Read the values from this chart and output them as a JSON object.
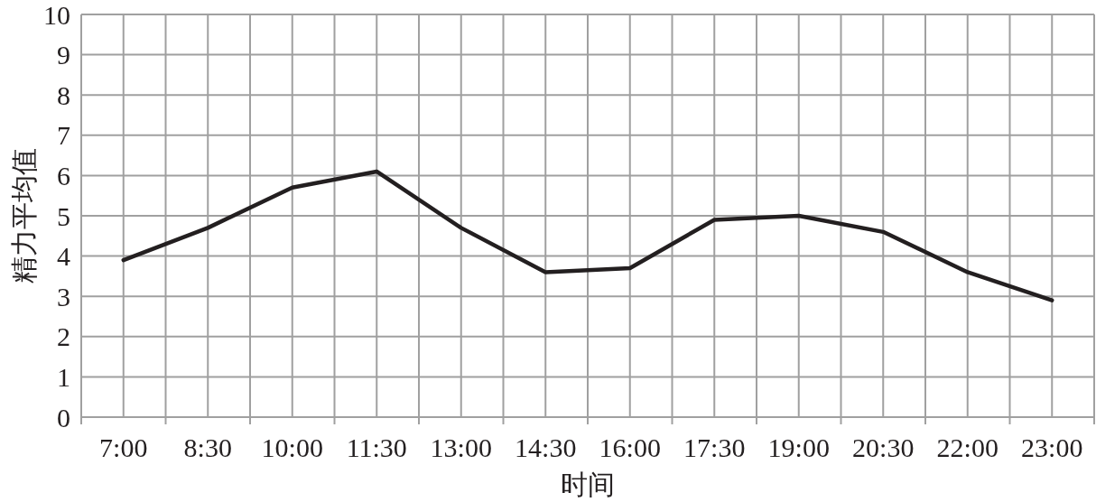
{
  "chart_data": {
    "type": "line",
    "xlabel": "时间",
    "ylabel": "精力平均值",
    "categories": [
      "7:00",
      "8:30",
      "10:00",
      "11:30",
      "13:00",
      "14:30",
      "16:00",
      "17:30",
      "19:00",
      "20:30",
      "22:00",
      "23:00"
    ],
    "values": [
      3.9,
      4.7,
      5.7,
      6.1,
      4.7,
      3.6,
      3.7,
      4.9,
      5.0,
      4.6,
      3.6,
      2.9
    ],
    "color": "#231f20",
    "ylim": [
      0,
      10
    ],
    "yticks": [
      0,
      1,
      2,
      3,
      4,
      5,
      6,
      7,
      8,
      9,
      10
    ],
    "grid": true,
    "line_style": "solid"
  }
}
